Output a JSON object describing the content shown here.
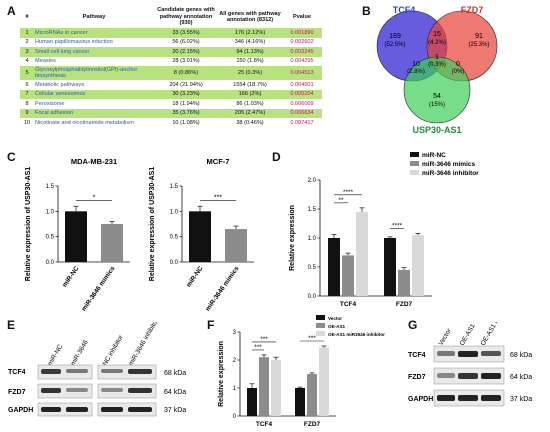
{
  "panels": {
    "a": "A",
    "b": "B",
    "c": "C",
    "d": "D",
    "e": "E",
    "f": "F",
    "g": "G"
  },
  "table": {
    "headers": [
      "#",
      "Pathway",
      "Candidate genes with pathway annotation (930)",
      "All genes with pathway annotation (8312)",
      "Pvalue"
    ],
    "rows": [
      [
        "1",
        "MicroRNAs in cancer",
        "33 (3.55%)",
        "176 (2.12%)",
        "0.001890"
      ],
      [
        "2",
        "Human papillomavirus infection",
        "56 (6.02%)",
        "346 (4.16%)",
        "0.002602"
      ],
      [
        "3",
        "Small cell lung cancer",
        "20 (2.15%)",
        "94 (1.13%)",
        "0.003245"
      ],
      [
        "4",
        "Measles",
        "28 (3.01%)",
        "150 (1.8%)",
        "0.004295"
      ],
      [
        "5",
        "Glycosylphosphatidylinositol(GPI)-anchor biosynthesis",
        "8 (0.86%)",
        "25 (0.3%)",
        "0.004513"
      ],
      [
        "6",
        "Metabolic pathways",
        "204 (21.94%)",
        "1554 (18.7%)",
        "0.004601"
      ],
      [
        "7",
        "Cellular senescence",
        "30 (3.23%)",
        "166 (2%)",
        "0.005204"
      ],
      [
        "8",
        "Peroxisome",
        "18 (1.94%)",
        "86 (1.03%)",
        "0.006009"
      ],
      [
        "9",
        "Focal adhesion",
        "35 (3.76%)",
        "205 (2.47%)",
        "0.006634"
      ],
      [
        "10",
        "Nicotinate and nicotinamide metabolism",
        "10 (1.08%)",
        "38 (0.46%)",
        "0.007417"
      ]
    ]
  },
  "venn": {
    "labels": {
      "tcf4": "TCF4",
      "fzd7": "FZD7",
      "usp30": "USP30-AS1"
    },
    "colors": {
      "tcf4": "#4a3fd8",
      "fzd7": "#e8453c",
      "usp30": "#3ecf5a",
      "label_blue": "#2740c8",
      "label_red": "#c0392b",
      "label_green": "#1a8f3a"
    },
    "regions": [
      {
        "id": "tcf4-only",
        "count": "189",
        "pct": "(52.5%)"
      },
      {
        "id": "tcf4-fzd7",
        "count": "15",
        "pct": "(4.2%)"
      },
      {
        "id": "fzd7-only",
        "count": "91",
        "pct": "(25.3%)"
      },
      {
        "id": "tcf4-usp30",
        "count": "10",
        "pct": "(2.8%)"
      },
      {
        "id": "all-three",
        "count": "1",
        "pct": "(0.3%)"
      },
      {
        "id": "fzd7-usp30",
        "count": "0",
        "pct": "(0%)"
      },
      {
        "id": "usp30-only",
        "count": "54",
        "pct": "(15%)"
      }
    ]
  },
  "chart_data": [
    {
      "panel": "C-left",
      "type": "bar",
      "title": "MDA-MB-231",
      "ylabel": "Relative expression of USP30-AS1",
      "categories": [
        "miR-NC",
        "miR-3646 mimics"
      ],
      "values": [
        1.0,
        0.75
      ],
      "errors": [
        0.1,
        0.05
      ],
      "colors": [
        "#111111",
        "#8c8c8c"
      ],
      "significance": "*",
      "ylim": [
        0,
        1.5
      ],
      "yticks": [
        "0.0",
        "0.5",
        "1.0",
        "1.5"
      ]
    },
    {
      "panel": "C-right",
      "type": "bar",
      "title": "MCF-7",
      "ylabel": "Relative expression of USP30-AS1",
      "categories": [
        "miR-NC",
        "miR-3646 mimics"
      ],
      "values": [
        1.0,
        0.65
      ],
      "errors": [
        0.1,
        0.06
      ],
      "colors": [
        "#111111",
        "#8c8c8c"
      ],
      "significance": "***",
      "ylim": [
        0,
        1.5
      ],
      "yticks": [
        "0.0",
        "0.5",
        "1.0",
        "1.5"
      ]
    },
    {
      "panel": "D",
      "type": "bar",
      "ylabel": "Relative expression",
      "categories": [
        "TCF4",
        "FZD7"
      ],
      "series": [
        {
          "name": "miR-NC",
          "values": [
            1.0,
            1.0
          ],
          "errors": [
            0.06,
            0.02
          ],
          "color": "#111111"
        },
        {
          "name": "miR-3646 mimics",
          "values": [
            0.7,
            0.45
          ],
          "errors": [
            0.04,
            0.04
          ],
          "color": "#8c8c8c"
        },
        {
          "name": "miR-3646 inhibitor",
          "values": [
            1.45,
            1.05
          ],
          "errors": [
            0.07,
            0.03
          ],
          "color": "#d9d9d9"
        }
      ],
      "significance": [
        {
          "category": "TCF4",
          "pair": [
            0,
            1
          ],
          "label": "**"
        },
        {
          "category": "TCF4",
          "pair": [
            0,
            2
          ],
          "label": "****"
        },
        {
          "category": "FZD7",
          "pair": [
            0,
            1
          ],
          "label": "****"
        }
      ],
      "ylim": [
        0,
        2.0
      ],
      "yticks": [
        "0.0",
        "0.5",
        "1.0",
        "1.5",
        "2.0"
      ],
      "legend": "top-right"
    },
    {
      "panel": "F",
      "type": "bar",
      "ylabel": "Relative expression",
      "categories": [
        "TCF4",
        "FZD7"
      ],
      "series": [
        {
          "name": "Vector",
          "values": [
            1.0,
            1.0
          ],
          "errors": [
            0.15,
            0.03
          ],
          "color": "#111111"
        },
        {
          "name": "OE-AS1",
          "values": [
            2.1,
            1.5
          ],
          "errors": [
            0.08,
            0.04
          ],
          "color": "#8c8c8c"
        },
        {
          "name": "OE-AS1 miR3646 inhibitor",
          "values": [
            2.0,
            2.45
          ],
          "errors": [
            0.1,
            0.05
          ],
          "color": "#d9d9d9"
        }
      ],
      "significance": [
        {
          "category": "TCF4",
          "pair": [
            0,
            1
          ],
          "label": "***"
        },
        {
          "category": "TCF4",
          "pair": [
            0,
            2
          ],
          "label": "***"
        },
        {
          "category": "FZD7",
          "pair": [
            0,
            2
          ],
          "label": "***"
        }
      ],
      "ylim": [
        0,
        3
      ],
      "yticks": [
        "0",
        "1",
        "2",
        "3"
      ],
      "legend": "top-right"
    }
  ],
  "blot_e": {
    "lanes_left": [
      "miR-NC",
      "miR-3646"
    ],
    "lanes_right": [
      "NC inhibitor",
      "miR-3646 inhibitor"
    ],
    "proteins": [
      "TCF4",
      "FZD7",
      "GAPDH"
    ],
    "sizes": [
      "68 kDa",
      "64 kDa",
      "37 kDa"
    ]
  },
  "blot_g": {
    "lanes": [
      "Vector",
      "OE-AS1",
      "OE-AS1 miR3646 inhibitor"
    ],
    "proteins": [
      "TCF4",
      "FZD7",
      "GAPDH"
    ],
    "sizes": [
      "68 kDa",
      "64 kDa",
      "37 kDa"
    ]
  }
}
